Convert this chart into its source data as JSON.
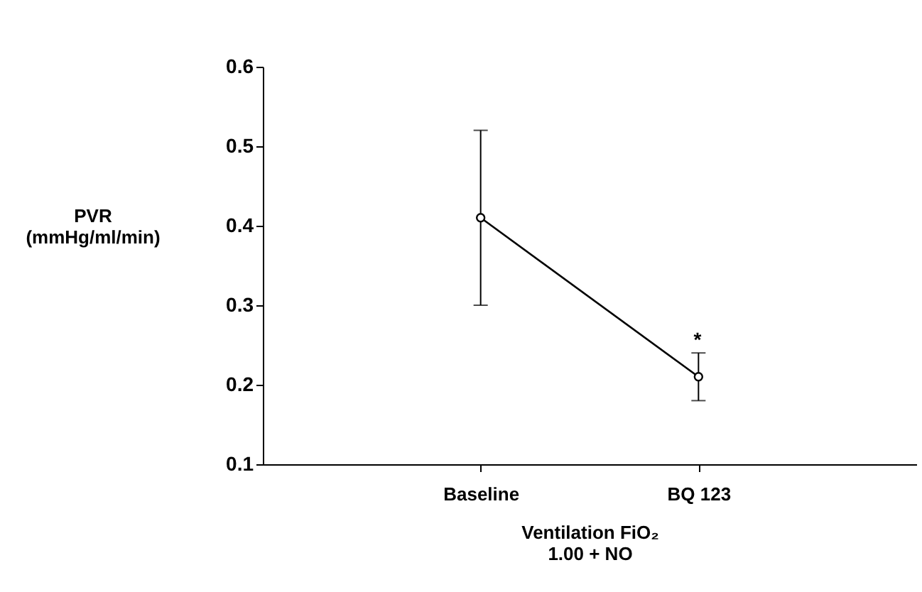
{
  "chart_data": {
    "type": "line",
    "categories": [
      "Baseline",
      "BQ 123"
    ],
    "series": [
      {
        "color": "#000000",
        "values": [
          0.41,
          0.21
        ],
        "errors": [
          [
            0.3,
            0.52
          ],
          [
            0.18,
            0.24
          ]
        ]
      }
    ],
    "ylabel": "PVR\n(mmHg/ml/min)",
    "xlabel": "Ventilation FiO₂\n1.00 + NO",
    "ylim": [
      0.1,
      0.6
    ],
    "yticks": [
      0.1,
      0.2,
      0.3,
      0.4,
      0.5,
      0.6
    ],
    "marker": "circle",
    "line_style": "solid",
    "grid": false,
    "annotations": [
      "*"
    ]
  }
}
